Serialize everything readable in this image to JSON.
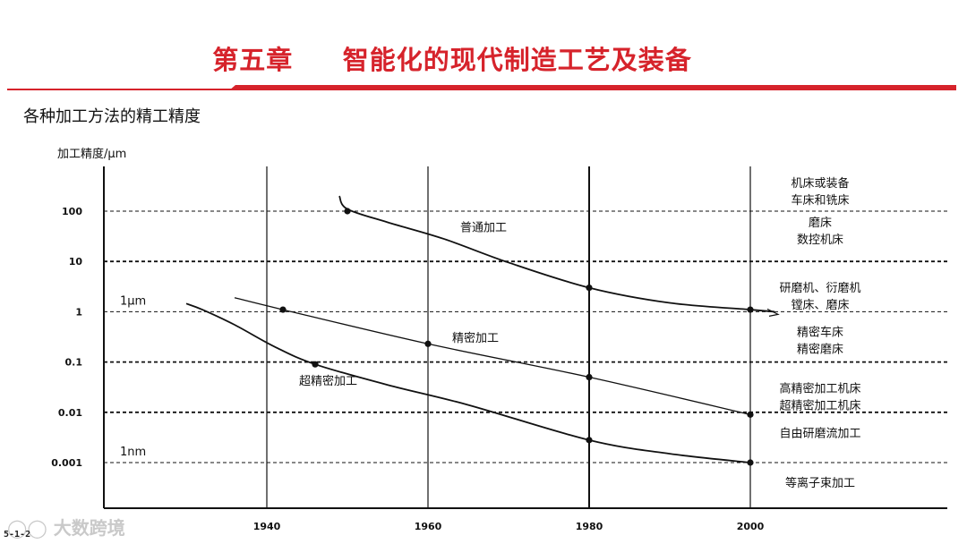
{
  "slide": {
    "title": "第五章     智能化的现代制造工艺及装备",
    "subtitle": "各种加工方法的精工精度",
    "watermark": "大数跨境",
    "slide_number": "5-1-2",
    "accent_color": "#d6232b"
  },
  "chart_data": {
    "type": "line",
    "title": "",
    "ylabel": "加工精度/μm",
    "xlabel": "",
    "y_scale": "log",
    "ylim": [
      0.0003,
      300
    ],
    "xlim": [
      1926,
      2010
    ],
    "x_ticks": [
      1940,
      1960,
      1980,
      2000
    ],
    "y_ticks": [
      {
        "value": 100,
        "label": "100"
      },
      {
        "value": 10,
        "label": "10"
      },
      {
        "value": 1,
        "label": "1"
      },
      {
        "value": 0.1,
        "label": "0.1"
      },
      {
        "value": 0.01,
        "label": "0.01"
      },
      {
        "value": 0.001,
        "label": "0.001"
      }
    ],
    "reference_labels": [
      {
        "label": "1μm",
        "value": 1
      },
      {
        "label": "1nm",
        "value": 0.001
      }
    ],
    "series": [
      {
        "name": "普通加工",
        "points": [
          [
            1950,
            100
          ],
          [
            1962,
            28
          ],
          [
            1980,
            3
          ],
          [
            2000,
            1.1
          ]
        ],
        "curve": [
          [
            1949,
            200
          ],
          [
            1950,
            110
          ],
          [
            1955,
            60
          ],
          [
            1962,
            28
          ],
          [
            1970,
            9.5
          ],
          [
            1980,
            3
          ],
          [
            1990,
            1.5
          ],
          [
            2000,
            1.1
          ],
          [
            2003,
            1.0
          ]
        ],
        "markers": [
          [
            1950,
            100
          ],
          [
            1980,
            3
          ],
          [
            2000,
            1.1
          ]
        ]
      },
      {
        "name": "精密加工",
        "points": [
          [
            1942,
            1.1
          ],
          [
            1960,
            0.23
          ],
          [
            1980,
            0.05
          ],
          [
            2000,
            0.009
          ]
        ],
        "curve": [
          [
            1936,
            1.9
          ],
          [
            1942,
            1.1
          ],
          [
            1960,
            0.23
          ],
          [
            1980,
            0.05
          ],
          [
            2000,
            0.009
          ]
        ],
        "markers": [
          [
            1942,
            1.1
          ],
          [
            1960,
            0.23
          ],
          [
            1980,
            0.05
          ],
          [
            2000,
            0.009
          ]
        ]
      },
      {
        "name": "超精密加工",
        "points": [
          [
            1946,
            0.09
          ],
          [
            1980,
            0.0028
          ],
          [
            2000,
            0.001
          ]
        ],
        "curve": [
          [
            1930,
            1.45
          ],
          [
            1932,
            1.1
          ],
          [
            1936,
            0.55
          ],
          [
            1941,
            0.2
          ],
          [
            1946,
            0.09
          ],
          [
            1955,
            0.035
          ],
          [
            1965,
            0.014
          ],
          [
            1980,
            0.0028
          ],
          [
            1990,
            0.0015
          ],
          [
            2000,
            0.001
          ]
        ],
        "markers": [
          [
            1946,
            0.09
          ],
          [
            1980,
            0.0028
          ],
          [
            2000,
            0.001
          ]
        ]
      }
    ],
    "annotations": [
      {
        "text": "普通加工",
        "x": 1964,
        "y": 40
      },
      {
        "text": "精密加工",
        "x": 1963,
        "y": 0.25
      },
      {
        "text": "超精密加工",
        "x": 1944,
        "y": 0.035
      }
    ],
    "grid": "dashed horizontal at y ticks, solid vertical at x ticks",
    "right_labels": [
      {
        "lines": [
          "机床或装备",
          "车床和铣床"
        ],
        "y": 300
      },
      {
        "lines": [
          "磨床",
          "数控机床"
        ],
        "y": 50
      },
      {
        "lines": [
          "研磨机、衍磨机",
          "镗床、磨床"
        ],
        "y": 2.5
      },
      {
        "lines": [
          "精密车床",
          "精密磨床"
        ],
        "y": 0.33
      },
      {
        "lines": [
          "高精密加工机床",
          "超精密加工机床"
        ],
        "y": 0.025
      },
      {
        "lines": [
          "自由研磨流加工"
        ],
        "y": 0.0032
      },
      {
        "lines": [
          "等离子束加工"
        ],
        "y": 0.00033
      }
    ]
  }
}
